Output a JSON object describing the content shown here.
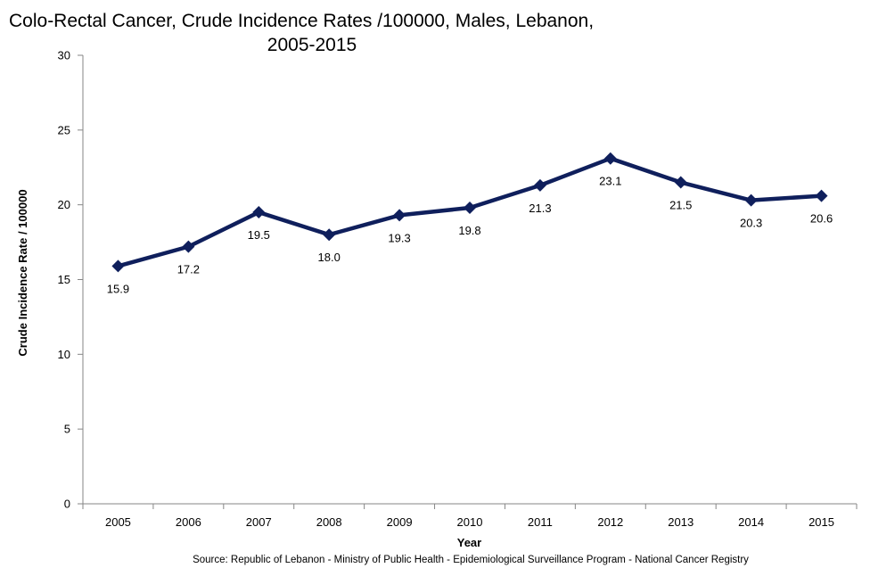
{
  "chart_data": {
    "type": "line",
    "title_lines": [
      "Colo-Rectal Cancer, Crude Incidence Rates /100000,  Males, Lebanon,",
      "2005-2015"
    ],
    "xlabel": "Year",
    "ylabel": "Crude Incidence Rate / 100000",
    "categories": [
      "2005",
      "2006",
      "2007",
      "2008",
      "2009",
      "2010",
      "2011",
      "2012",
      "2013",
      "2014",
      "2015"
    ],
    "series": [
      {
        "values": [
          15.9,
          17.2,
          19.5,
          18.0,
          19.3,
          19.8,
          21.3,
          23.1,
          21.5,
          20.3,
          20.6
        ],
        "data_labels": [
          "15.9",
          "17.2",
          "19.5",
          "18.0",
          "19.3",
          "19.8",
          "21.3",
          "23.1",
          "21.5",
          "20.3",
          "20.6"
        ],
        "color": "#0f1f5c",
        "marker": "diamond"
      }
    ],
    "ylim": [
      0,
      30
    ],
    "yticks": [
      "0",
      "5",
      "10",
      "15",
      "20",
      "25",
      "30"
    ],
    "grid": false,
    "legend": "none",
    "source": "Source:  Republic of Lebanon  - Ministry of Public Health - Epidemiological Surveillance Program - National Cancer Registry"
  }
}
